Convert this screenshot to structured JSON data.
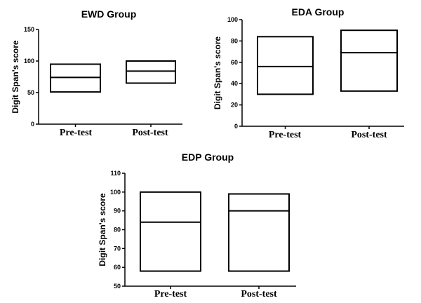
{
  "chart_data": [
    {
      "type": "box",
      "title": "EWD Group",
      "ylabel": "Digit Span's score",
      "categories": [
        "Pre-test",
        "Post-test"
      ],
      "yticks": [
        0,
        50,
        100,
        150
      ],
      "ylim": [
        0,
        150
      ],
      "boxes": [
        {
          "category": "Pre-test",
          "low": 51,
          "median": 74,
          "high": 95
        },
        {
          "category": "Post-test",
          "low": 65,
          "median": 84,
          "high": 100
        }
      ]
    },
    {
      "type": "box",
      "title": "EDA Group",
      "ylabel": "Digit Span's score",
      "categories": [
        "Pre-test",
        "Post-test"
      ],
      "yticks": [
        0,
        20,
        40,
        60,
        80,
        100
      ],
      "ylim": [
        0,
        100
      ],
      "boxes": [
        {
          "category": "Pre-test",
          "low": 30,
          "median": 56,
          "high": 84
        },
        {
          "category": "Post-test",
          "low": 33,
          "median": 69,
          "high": 90
        }
      ]
    },
    {
      "type": "box",
      "title": "EDP Group",
      "ylabel": "Digit Span's score",
      "categories": [
        "Pre-test",
        "Post-test"
      ],
      "yticks": [
        50,
        60,
        70,
        80,
        90,
        100,
        110
      ],
      "ylim": [
        50,
        110
      ],
      "boxes": [
        {
          "category": "Pre-test",
          "low": 58,
          "median": 84,
          "high": 100
        },
        {
          "category": "Post-test",
          "low": 58,
          "median": 90,
          "high": 99
        }
      ]
    }
  ]
}
